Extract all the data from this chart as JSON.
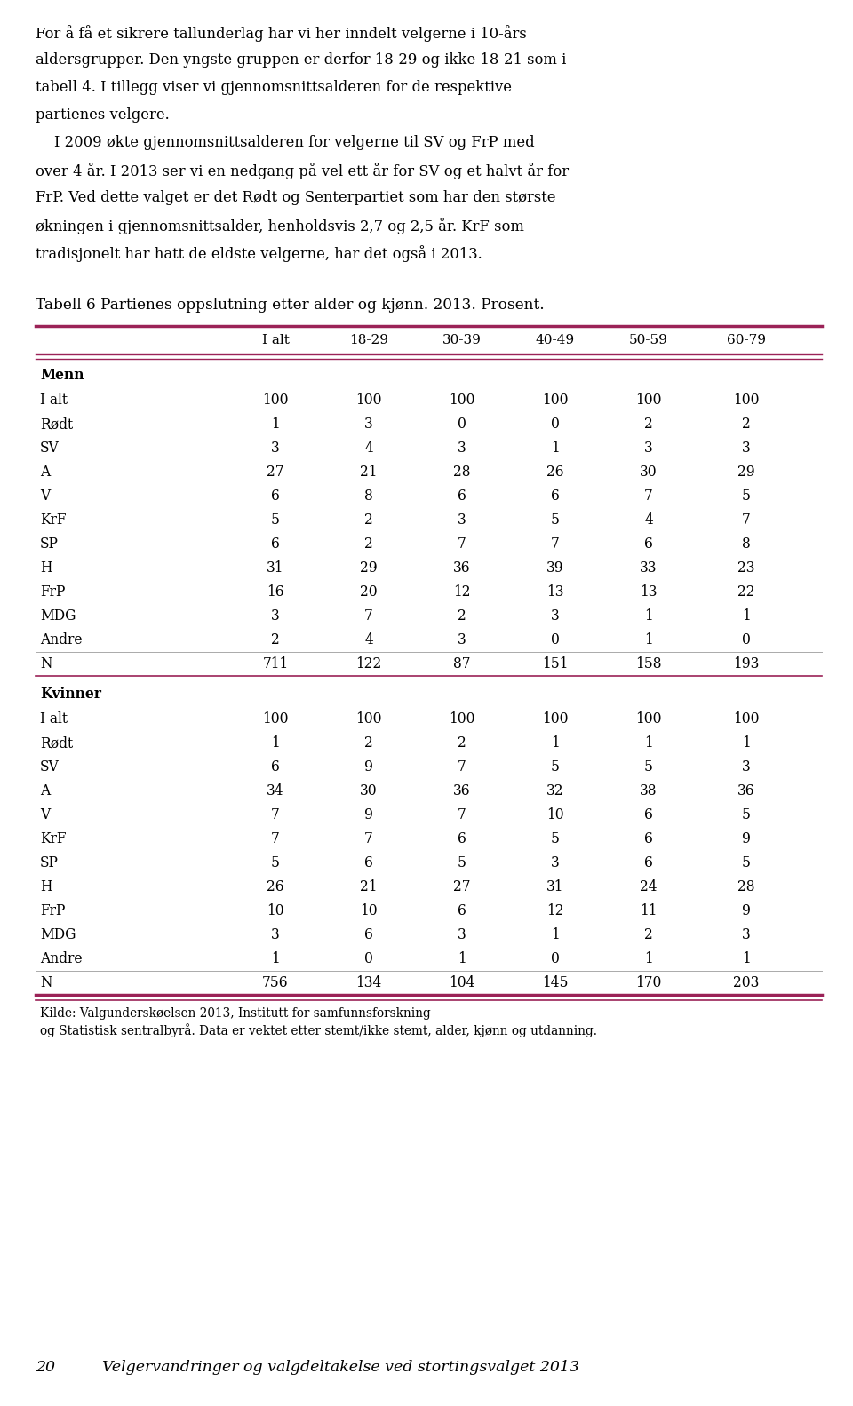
{
  "table_title": "Tabell 6 Partienes oppslutning etter alder og kjønn. 2013. Prosent.",
  "col_headers": [
    "I alt",
    "18-29",
    "30-39",
    "40-49",
    "50-59",
    "60-79"
  ],
  "menn_label": "Menn",
  "kvinner_label": "Kvinner",
  "menn_rows": [
    [
      "I alt",
      100,
      100,
      100,
      100,
      100,
      100
    ],
    [
      "Rødt",
      1,
      3,
      0,
      0,
      2,
      2
    ],
    [
      "SV",
      3,
      4,
      3,
      1,
      3,
      3
    ],
    [
      "A",
      27,
      21,
      28,
      26,
      30,
      29
    ],
    [
      "V",
      6,
      8,
      6,
      6,
      7,
      5
    ],
    [
      "KrF",
      5,
      2,
      3,
      5,
      4,
      7
    ],
    [
      "SP",
      6,
      2,
      7,
      7,
      6,
      8
    ],
    [
      "H",
      31,
      29,
      36,
      39,
      33,
      23
    ],
    [
      "FrP",
      16,
      20,
      12,
      13,
      13,
      22
    ],
    [
      "MDG",
      3,
      7,
      2,
      3,
      1,
      1
    ],
    [
      "Andre",
      2,
      4,
      3,
      0,
      1,
      0
    ],
    [
      "N",
      711,
      122,
      87,
      151,
      158,
      193
    ]
  ],
  "kvinner_rows": [
    [
      "I alt",
      100,
      100,
      100,
      100,
      100,
      100
    ],
    [
      "Rødt",
      1,
      2,
      2,
      1,
      1,
      1
    ],
    [
      "SV",
      6,
      9,
      7,
      5,
      5,
      3
    ],
    [
      "A",
      34,
      30,
      36,
      32,
      38,
      36
    ],
    [
      "V",
      7,
      9,
      7,
      10,
      6,
      5
    ],
    [
      "KrF",
      7,
      7,
      6,
      5,
      6,
      9
    ],
    [
      "SP",
      5,
      6,
      5,
      3,
      6,
      5
    ],
    [
      "H",
      26,
      21,
      27,
      31,
      24,
      28
    ],
    [
      "FrP",
      10,
      10,
      6,
      12,
      11,
      9
    ],
    [
      "MDG",
      3,
      6,
      3,
      1,
      2,
      3
    ],
    [
      "Andre",
      1,
      0,
      1,
      0,
      1,
      1
    ],
    [
      "N",
      756,
      134,
      104,
      145,
      170,
      203
    ]
  ],
  "footnote_line1": "Kilde: Valgunderskøelsen 2013, Institutt for samfunnsforskning",
  "footnote_line2": "og Statistisk sentralbyrå. Data er vektet etter stemt/ikke stemt, alder, kjønn og utdanning.",
  "page_number": "20",
  "page_footer": "Velgervandringer og valgdeltakelse ved stortingsvalget 2013",
  "accent_color": "#9B2257",
  "bg_color": "#ffffff",
  "text_color": "#000000",
  "intro_lines": [
    "For å få et sikrere tallunderlag har vi her inndelt velgerne i 10-års",
    "aldersgrupper. Den yngste gruppen er derfor 18-29 og ikke 18-21 som i",
    "tabell 4. I tillegg viser vi gjennomsnittsalderen for de respektive",
    "partienes velgere.",
    "    I 2009 økte gjennomsnittsalderen for velgerne til SV og FrP med",
    "over 4 år. I 2013 ser vi en nedgang på vel ett år for SV og et halvt år for",
    "FrP. Ved dette valget er det Rødt og Senterpartiet som har den største",
    "økningen i gjennomsnittsalder, henholdsvis 2,7 og 2,5 år. KrF som",
    "tradisjonelt har hatt de eldste velgerne, har det også i 2013."
  ]
}
